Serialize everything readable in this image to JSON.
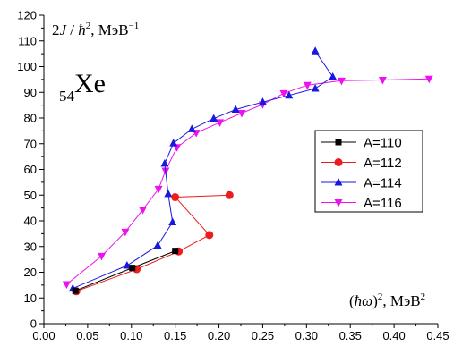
{
  "chart_data": {
    "type": "line",
    "xlim": [
      0.0,
      0.45
    ],
    "ylim": [
      0,
      120
    ],
    "x_ticks": [
      "0.00",
      "0.05",
      "0.10",
      "0.15",
      "0.20",
      "0.25",
      "0.30",
      "0.35",
      "0.40",
      "0.45"
    ],
    "y_ticks": [
      "0",
      "10",
      "20",
      "30",
      "40",
      "50",
      "60",
      "70",
      "80",
      "90",
      "100",
      "110",
      "120"
    ],
    "ylabel": {
      "prefix": "2",
      "var": "J",
      "mid": " / ",
      "hbar": "ħ",
      "sup": "2",
      "unit": ", МэВ",
      "unit_sup": "−1"
    },
    "xlabel": {
      "paren_open": "(",
      "hbar": "ħ",
      "var": "ω",
      "paren_close": ")",
      "sup": "2",
      "unit": ", МэВ",
      "unit_sup": "2"
    },
    "annotation": {
      "sub": "54",
      "text": "Xe"
    },
    "legend_position": "right",
    "grid": false,
    "series": [
      {
        "name": "A=110",
        "color": "#000000",
        "marker": "square",
        "points": [
          [
            0.036,
            12.8
          ],
          [
            0.101,
            21.7
          ],
          [
            0.15,
            28.3
          ]
        ]
      },
      {
        "name": "A=112",
        "color": "#ee1c1c",
        "marker": "circle",
        "points": [
          [
            0.037,
            12.6
          ],
          [
            0.106,
            21.2
          ],
          [
            0.154,
            28.1
          ],
          [
            0.189,
            34.5
          ],
          [
            0.15,
            49.2
          ],
          [
            0.212,
            50.0
          ]
        ]
      },
      {
        "name": "A=114",
        "color": "#1818e0",
        "marker": "triangle-up",
        "points": [
          [
            0.033,
            13.7
          ],
          [
            0.095,
            22.6
          ],
          [
            0.13,
            30.4
          ],
          [
            0.147,
            39.5
          ],
          [
            0.142,
            50.5
          ],
          [
            0.138,
            62.3
          ],
          [
            0.148,
            70.2
          ],
          [
            0.169,
            75.7
          ],
          [
            0.194,
            79.8
          ],
          [
            0.219,
            83.3
          ],
          [
            0.25,
            86.2
          ],
          [
            0.28,
            88.8
          ],
          [
            0.31,
            91.5
          ],
          [
            0.33,
            96.0
          ],
          [
            0.31,
            106.0
          ]
        ]
      },
      {
        "name": "A=116",
        "color": "#ee10ee",
        "marker": "triangle-down",
        "points": [
          [
            0.026,
            15.3
          ],
          [
            0.066,
            26.3
          ],
          [
            0.093,
            35.7
          ],
          [
            0.113,
            44.3
          ],
          [
            0.131,
            52.4
          ],
          [
            0.139,
            59.5
          ],
          [
            0.152,
            68.6
          ],
          [
            0.174,
            74.2
          ],
          [
            0.201,
            78.3
          ],
          [
            0.226,
            81.9
          ],
          [
            0.25,
            85.3
          ],
          [
            0.274,
            89.6
          ],
          [
            0.301,
            92.8
          ],
          [
            0.34,
            94.5
          ],
          [
            0.387,
            94.8
          ],
          [
            0.44,
            95.2
          ]
        ]
      }
    ]
  }
}
